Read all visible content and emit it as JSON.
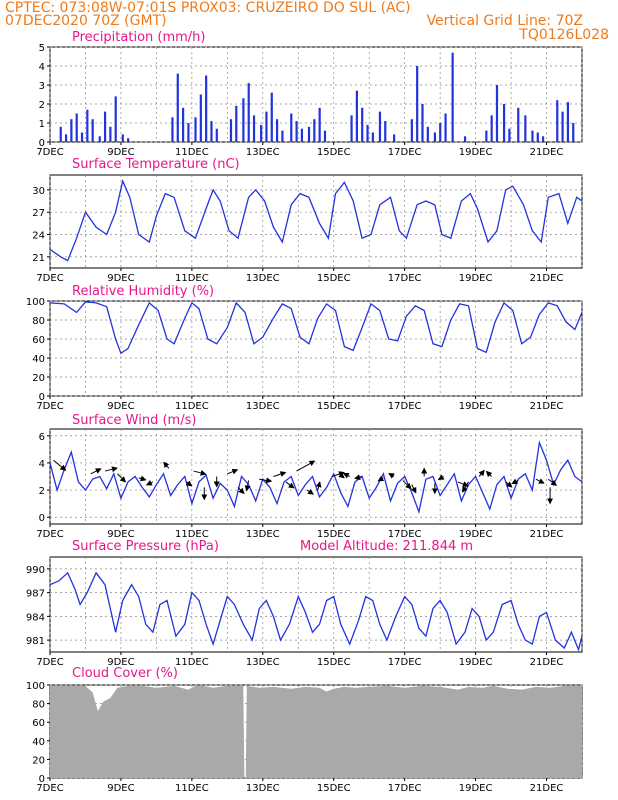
{
  "header": {
    "line1_left": "CPTEC:   073:08W-07:01S   PROX03: CRUZEIRO DO SUL (AC)",
    "line2_left": "07DEC2020 70Z (GMT)",
    "line2_right": "Vertical Grid Line: 70Z",
    "line3_right": "TQ0126L028"
  },
  "colors": {
    "header": "#f07a1a",
    "title": "#e8168c",
    "series": "#2233dd",
    "cloud": "#a9a9a9",
    "grid": "#888888"
  },
  "time_axis": {
    "labels": [
      "7DEC",
      "9DEC",
      "11DEC",
      "13DEC",
      "15DEC",
      "17DEC",
      "19DEC",
      "21DEC"
    ],
    "label_days": [
      0,
      2,
      4,
      6,
      8,
      10,
      12,
      14
    ],
    "range_days": [
      0,
      15
    ]
  },
  "chart_data": [
    {
      "type": "bar",
      "title": "Precipitation  (mm/h)",
      "ylim": [
        0,
        5
      ],
      "yticks": [
        "0",
        "1",
        "2",
        "3",
        "4",
        "5"
      ],
      "x_days": [
        0.3,
        0.45,
        0.6,
        0.75,
        0.9,
        1.05,
        1.2,
        1.4,
        1.55,
        1.7,
        1.85,
        2.05,
        2.2,
        3.45,
        3.6,
        3.75,
        3.9,
        4.1,
        4.25,
        4.4,
        4.55,
        4.7,
        5.1,
        5.25,
        5.45,
        5.6,
        5.75,
        5.95,
        6.1,
        6.25,
        6.4,
        6.55,
        6.8,
        6.95,
        7.1,
        7.3,
        7.45,
        7.6,
        7.75,
        8.5,
        8.65,
        8.8,
        8.95,
        9.1,
        9.3,
        9.45,
        9.7,
        10.2,
        10.35,
        10.5,
        10.65,
        10.85,
        11.0,
        11.15,
        11.35,
        11.7,
        12.3,
        12.45,
        12.6,
        12.8,
        12.95,
        13.2,
        13.4,
        13.6,
        13.75,
        13.9,
        14.3,
        14.45,
        14.6,
        14.75
      ],
      "values": [
        0.8,
        0.4,
        1.2,
        1.5,
        0.5,
        1.7,
        1.2,
        0.3,
        1.6,
        0.8,
        2.4,
        0.4,
        0.2,
        1.3,
        3.6,
        1.8,
        1.0,
        1.3,
        2.5,
        3.5,
        1.1,
        0.7,
        1.2,
        1.9,
        2.3,
        3.1,
        1.4,
        0.9,
        1.6,
        2.6,
        1.2,
        0.6,
        1.5,
        1.1,
        0.7,
        0.8,
        1.2,
        1.8,
        0.6,
        1.4,
        2.7,
        1.8,
        0.9,
        0.5,
        1.6,
        1.1,
        0.4,
        1.2,
        4.0,
        2.0,
        0.8,
        0.5,
        1.0,
        1.5,
        4.7,
        0.3,
        0.6,
        1.4,
        3.0,
        2.0,
        0.7,
        1.8,
        1.4,
        0.6,
        0.5,
        0.3,
        2.2,
        1.6,
        2.1,
        1.0
      ]
    },
    {
      "type": "line",
      "title": "Surface Temperature  (nC)",
      "ylim": [
        19.5,
        32
      ],
      "yticks": [
        "21",
        "24",
        "27",
        "30"
      ],
      "ytick_values": [
        21,
        24,
        27,
        30
      ],
      "x_days": [
        0,
        0.3,
        0.5,
        0.75,
        1.0,
        1.3,
        1.6,
        1.85,
        2.05,
        2.25,
        2.5,
        2.8,
        3.0,
        3.25,
        3.5,
        3.8,
        4.1,
        4.4,
        4.6,
        4.8,
        5.05,
        5.3,
        5.6,
        5.8,
        6.05,
        6.3,
        6.55,
        6.8,
        7.05,
        7.3,
        7.6,
        7.85,
        8.05,
        8.3,
        8.55,
        8.8,
        9.05,
        9.3,
        9.6,
        9.85,
        10.05,
        10.35,
        10.6,
        10.85,
        11.05,
        11.3,
        11.6,
        11.85,
        12.05,
        12.35,
        12.6,
        12.85,
        13.05,
        13.35,
        13.6,
        13.85,
        14.05,
        14.35,
        14.6,
        14.85,
        15.0
      ],
      "values": [
        22.0,
        21.0,
        20.5,
        23.5,
        27.0,
        25.0,
        24.0,
        27.0,
        31.2,
        29.0,
        24.0,
        23.0,
        26.5,
        29.5,
        29.0,
        24.5,
        23.5,
        27.5,
        30.0,
        28.5,
        24.5,
        23.5,
        29.0,
        30.0,
        28.5,
        25.0,
        23.0,
        28.0,
        29.5,
        29.0,
        25.5,
        23.5,
        29.5,
        31.0,
        28.5,
        23.5,
        24.0,
        28.0,
        29.0,
        24.5,
        23.5,
        28.0,
        28.5,
        28.0,
        24.0,
        23.5,
        28.5,
        29.5,
        27.5,
        23.0,
        24.5,
        30.0,
        30.5,
        28.0,
        24.5,
        23.0,
        29.0,
        29.5,
        25.5,
        29.0,
        28.5
      ]
    },
    {
      "type": "line",
      "title": "Relative Humidity  (%)",
      "ylim": [
        0,
        100
      ],
      "yticks": [
        "0",
        "20",
        "40",
        "60",
        "80",
        "100"
      ],
      "ytick_values": [
        0,
        20,
        40,
        60,
        80,
        100
      ],
      "x_days": [
        0,
        0.4,
        0.75,
        1.0,
        1.3,
        1.6,
        1.85,
        2.0,
        2.2,
        2.5,
        2.8,
        3.05,
        3.3,
        3.5,
        3.8,
        4.0,
        4.2,
        4.45,
        4.7,
        5.0,
        5.25,
        5.5,
        5.75,
        6.0,
        6.3,
        6.55,
        6.8,
        7.05,
        7.3,
        7.55,
        7.8,
        8.05,
        8.3,
        8.55,
        8.8,
        9.05,
        9.3,
        9.55,
        9.8,
        10.05,
        10.3,
        10.55,
        10.8,
        11.05,
        11.3,
        11.55,
        11.8,
        12.05,
        12.3,
        12.55,
        12.8,
        13.05,
        13.3,
        13.55,
        13.8,
        14.05,
        14.3,
        14.55,
        14.8,
        15.0
      ],
      "values": [
        98,
        97,
        88,
        99,
        98,
        94,
        60,
        45,
        50,
        75,
        98,
        90,
        60,
        55,
        82,
        98,
        92,
        60,
        55,
        72,
        98,
        88,
        55,
        62,
        82,
        97,
        92,
        62,
        55,
        82,
        97,
        90,
        52,
        48,
        72,
        97,
        90,
        60,
        58,
        84,
        95,
        90,
        55,
        52,
        80,
        97,
        95,
        50,
        46,
        78,
        98,
        90,
        55,
        62,
        86,
        98,
        95,
        78,
        70,
        88
      ]
    },
    {
      "type": "line",
      "title": "Surface Wind  (m/s)",
      "ylim": [
        -0.5,
        6.5
      ],
      "yticks": [
        "0",
        "2",
        "4",
        "6"
      ],
      "ytick_values": [
        0,
        2,
        4,
        6
      ],
      "x_days": [
        0,
        0.2,
        0.4,
        0.6,
        0.8,
        1.0,
        1.2,
        1.4,
        1.6,
        1.8,
        2.0,
        2.2,
        2.4,
        2.6,
        2.8,
        3.0,
        3.2,
        3.4,
        3.6,
        3.8,
        4.0,
        4.2,
        4.4,
        4.6,
        4.8,
        5.0,
        5.2,
        5.4,
        5.6,
        5.8,
        6.0,
        6.2,
        6.4,
        6.6,
        6.8,
        7.0,
        7.2,
        7.4,
        7.6,
        7.8,
        8.0,
        8.2,
        8.4,
        8.6,
        8.8,
        9.0,
        9.2,
        9.4,
        9.6,
        9.8,
        10.0,
        10.2,
        10.4,
        10.6,
        10.8,
        11.0,
        11.2,
        11.4,
        11.6,
        11.8,
        12.0,
        12.2,
        12.4,
        12.6,
        12.8,
        13.0,
        13.2,
        13.4,
        13.6,
        13.8,
        14.0,
        14.2,
        14.4,
        14.6,
        14.8,
        15.0
      ],
      "values": [
        4.0,
        2.0,
        3.5,
        4.8,
        2.6,
        2.0,
        2.8,
        3.0,
        2.1,
        3.2,
        1.4,
        2.6,
        3.0,
        2.2,
        1.5,
        2.4,
        3.2,
        1.6,
        2.4,
        3.0,
        1.0,
        2.6,
        3.1,
        1.4,
        2.5,
        2.0,
        0.8,
        3.0,
        2.4,
        1.2,
        2.8,
        2.2,
        1.0,
        2.6,
        3.0,
        1.6,
        2.4,
        3.0,
        1.5,
        2.2,
        3.2,
        1.8,
        0.8,
        2.6,
        3.0,
        1.4,
        2.2,
        3.2,
        1.2,
        2.5,
        3.0,
        1.8,
        0.4,
        2.8,
        3.0,
        1.6,
        2.4,
        3.2,
        1.2,
        2.4,
        3.0,
        1.8,
        0.6,
        2.4,
        3.0,
        1.4,
        2.8,
        3.2,
        2.0,
        5.5,
        4.2,
        2.4,
        3.5,
        4.2,
        3.0,
        2.6
      ]
    },
    {
      "type": "line",
      "title": "Surface Pressure  (hPa)",
      "annotation": "Model Altitude: 211.844  m",
      "ylim": [
        979.5,
        991.5
      ],
      "yticks": [
        "981",
        "984",
        "987",
        "990"
      ],
      "ytick_values": [
        981,
        984,
        987,
        990
      ],
      "x_days": [
        0,
        0.25,
        0.5,
        0.7,
        0.85,
        1.05,
        1.3,
        1.55,
        1.7,
        1.85,
        2.05,
        2.3,
        2.5,
        2.7,
        2.9,
        3.1,
        3.3,
        3.55,
        3.8,
        4.0,
        4.2,
        4.4,
        4.6,
        4.8,
        5.0,
        5.2,
        5.45,
        5.7,
        5.9,
        6.1,
        6.3,
        6.5,
        6.75,
        7.0,
        7.2,
        7.4,
        7.6,
        7.8,
        8.0,
        8.2,
        8.45,
        8.7,
        8.9,
        9.1,
        9.3,
        9.5,
        9.75,
        10.0,
        10.2,
        10.4,
        10.6,
        10.8,
        11.0,
        11.2,
        11.45,
        11.7,
        11.9,
        12.1,
        12.3,
        12.5,
        12.75,
        13.0,
        13.2,
        13.4,
        13.6,
        13.8,
        14.0,
        14.25,
        14.5,
        14.7,
        14.9,
        15.0
      ],
      "values": [
        988,
        988.5,
        989.5,
        987.5,
        985.5,
        987,
        989.5,
        988,
        985,
        982,
        986,
        988,
        986.5,
        983,
        982,
        985.5,
        986,
        981.5,
        983,
        987,
        986,
        983,
        980.5,
        983.5,
        986.5,
        985.5,
        983,
        981,
        985,
        986,
        984,
        981,
        983,
        986.5,
        984.5,
        982,
        983,
        986,
        986.5,
        983,
        980.5,
        983.5,
        986.5,
        986,
        983,
        981,
        984,
        986.5,
        985.5,
        982.5,
        981.5,
        985,
        986,
        984.5,
        980.5,
        982,
        985,
        984,
        981,
        982,
        985.5,
        986,
        983,
        981,
        980.5,
        984,
        984.5,
        981,
        980,
        982,
        979.8,
        981.5
      ]
    },
    {
      "type": "area",
      "title": "Cloud Cover  (%)",
      "ylim": [
        0,
        100
      ],
      "yticks": [
        "0",
        "20",
        "40",
        "60",
        "80",
        "100"
      ],
      "ytick_values": [
        0,
        20,
        40,
        60,
        80,
        100
      ],
      "x_days": [
        0,
        0.5,
        1.0,
        1.2,
        1.35,
        1.5,
        1.7,
        1.9,
        2.2,
        2.6,
        3.0,
        3.5,
        3.9,
        4.1,
        4.3,
        4.6,
        5.0,
        5.45,
        5.48,
        5.52,
        5.55,
        5.9,
        6.3,
        6.8,
        7.2,
        7.6,
        7.8,
        8.0,
        8.3,
        8.6,
        9.0,
        9.5,
        10.0,
        10.5,
        11.0,
        11.5,
        11.8,
        12.2,
        12.5,
        12.9,
        13.3,
        13.7,
        14.1,
        14.5,
        15.0
      ],
      "values": [
        99,
        99,
        99,
        92,
        72,
        82,
        86,
        97,
        99,
        99,
        97,
        99,
        95,
        99,
        99,
        97,
        99,
        99,
        0,
        0,
        99,
        97,
        98,
        96,
        98,
        97,
        93,
        96,
        98,
        97,
        98,
        99,
        97,
        99,
        98,
        95,
        98,
        97,
        99,
        96,
        95,
        98,
        97,
        99,
        99
      ]
    }
  ],
  "wind_arrows": [
    {
      "day": 0.1,
      "wind": 4.2,
      "dx": 12,
      "dy": 10
    },
    {
      "day": 1.15,
      "wind": 3.2,
      "dx": 10,
      "dy": -5
    },
    {
      "day": 1.55,
      "wind": 3.4,
      "dx": 12,
      "dy": -3
    },
    {
      "day": 1.9,
      "wind": 3.2,
      "dx": 8,
      "dy": 8
    },
    {
      "day": 2.5,
      "wind": 2.9,
      "dx": 7,
      "dy": 2
    },
    {
      "day": 2.9,
      "wind": 2.6,
      "dx": -6,
      "dy": 3
    },
    {
      "day": 3.35,
      "wind": 3.6,
      "dx": -5,
      "dy": -6
    },
    {
      "day": 3.85,
      "wind": 2.6,
      "dx": 5,
      "dy": 4
    },
    {
      "day": 4.05,
      "wind": 3.4,
      "dx": 12,
      "dy": 3
    },
    {
      "day": 4.35,
      "wind": 2.2,
      "dx": 0,
      "dy": 12
    },
    {
      "day": 4.7,
      "wind": 3.0,
      "dx": 0,
      "dy": 10
    },
    {
      "day": 5.0,
      "wind": 3.2,
      "dx": 10,
      "dy": -4
    },
    {
      "day": 5.3,
      "wind": 2.2,
      "dx": 6,
      "dy": 6
    },
    {
      "day": 5.6,
      "wind": 2.7,
      "dx": -2,
      "dy": 10
    },
    {
      "day": 5.9,
      "wind": 2.8,
      "dx": 12,
      "dy": 2
    },
    {
      "day": 6.3,
      "wind": 3.0,
      "dx": 12,
      "dy": -4
    },
    {
      "day": 6.65,
      "wind": 2.6,
      "dx": 8,
      "dy": 6
    },
    {
      "day": 6.95,
      "wind": 3.4,
      "dx": 18,
      "dy": -10
    },
    {
      "day": 7.25,
      "wind": 2.0,
      "dx": 6,
      "dy": 4
    },
    {
      "day": 7.55,
      "wind": 2.0,
      "dx": 2,
      "dy": -8
    },
    {
      "day": 7.95,
      "wind": 3.0,
      "dx": 12,
      "dy": -4
    },
    {
      "day": 8.15,
      "wind": 3.2,
      "dx": 5,
      "dy": 4
    },
    {
      "day": 8.45,
      "wind": 3.0,
      "dx": -6,
      "dy": -3
    },
    {
      "day": 8.8,
      "wind": 3.0,
      "dx": -7,
      "dy": 2
    },
    {
      "day": 9.4,
      "wind": 2.9,
      "dx": -5,
      "dy": 3
    },
    {
      "day": 9.7,
      "wind": 3.0,
      "dx": -5,
      "dy": -3
    },
    {
      "day": 9.95,
      "wind": 2.7,
      "dx": 8,
      "dy": 8
    },
    {
      "day": 10.2,
      "wind": 2.4,
      "dx": 4,
      "dy": 8
    },
    {
      "day": 10.55,
      "wind": 3.0,
      "dx": 0,
      "dy": -8
    },
    {
      "day": 10.85,
      "wind": 2.5,
      "dx": 0,
      "dy": 10
    },
    {
      "day": 11.1,
      "wind": 3.0,
      "dx": -5,
      "dy": 3
    },
    {
      "day": 11.5,
      "wind": 2.6,
      "dx": 10,
      "dy": 4
    },
    {
      "day": 11.8,
      "wind": 2.6,
      "dx": -6,
      "dy": 10
    },
    {
      "day": 12.1,
      "wind": 3.0,
      "dx": 5,
      "dy": -6
    },
    {
      "day": 12.45,
      "wind": 3.0,
      "dx": -5,
      "dy": -5
    },
    {
      "day": 12.85,
      "wind": 2.6,
      "dx": 6,
      "dy": 5
    },
    {
      "day": 13.2,
      "wind": 2.7,
      "dx": -6,
      "dy": 3
    },
    {
      "day": 13.7,
      "wind": 2.8,
      "dx": 8,
      "dy": 4
    },
    {
      "day": 14.05,
      "wind": 2.8,
      "dx": 8,
      "dy": 6
    },
    {
      "day": 14.1,
      "wind": 2.2,
      "dx": 0,
      "dy": 16
    }
  ]
}
